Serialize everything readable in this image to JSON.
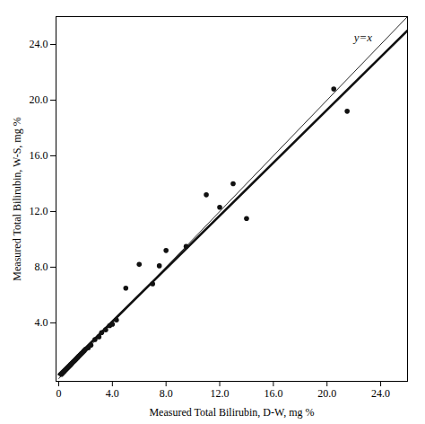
{
  "chart_data": {
    "type": "scatter",
    "xlabel": "Measured Total Bilirubin, D-W, mg %",
    "ylabel": "Measured Total Bilirubin, W-S, mg %",
    "series": [
      {
        "type": "line",
        "line_style": "solid",
        "color": "#111111",
        "x": [
          0,
          26
        ],
        "values": [
          0,
          26
        ]
      },
      {
        "type": "line",
        "line_style": "solid",
        "color": "#111111",
        "x": [
          0,
          26
        ],
        "values": [
          0.3,
          25.0
        ]
      },
      {
        "type": "scatter",
        "marker": "circle",
        "color": "#111111",
        "x": [
          0.2,
          0.3,
          0.4,
          0.5,
          0.6,
          0.7,
          0.8,
          0.9,
          1.0,
          1.1,
          1.2,
          1.3,
          1.4,
          1.5,
          1.6,
          1.7,
          1.8,
          1.9,
          2.0,
          2.2,
          2.4,
          2.7,
          3.0,
          3.2,
          3.5,
          3.8,
          4.0,
          4.3,
          5.0,
          6.0,
          7.0,
          7.5,
          8.0,
          9.5,
          11.0,
          12.0,
          13.0,
          14.0,
          20.5,
          21.5
        ],
        "values": [
          0.3,
          0.4,
          0.5,
          0.6,
          0.7,
          0.8,
          0.9,
          1.0,
          1.1,
          1.2,
          1.3,
          1.4,
          1.5,
          1.6,
          1.7,
          1.8,
          1.9,
          2.0,
          2.1,
          2.2,
          2.4,
          2.8,
          3.0,
          3.3,
          3.5,
          3.8,
          3.9,
          4.2,
          6.5,
          8.2,
          6.8,
          8.1,
          9.2,
          9.5,
          13.2,
          12.3,
          14.0,
          11.5,
          20.8,
          19.2
        ]
      }
    ],
    "annotations": [
      {
        "text": "y=x",
        "x": 22.0,
        "y": 24.5
      }
    ],
    "xlim": [
      -0.2,
      26
    ],
    "ylim": [
      -0.2,
      26
    ],
    "xticks": [
      0,
      {
        "value": 4.0,
        "label": "4.0"
      },
      {
        "value": 8.0,
        "label": "8.0"
      },
      {
        "value": 12.0,
        "label": "12.0"
      },
      {
        "value": 16.0,
        "label": "16.0"
      },
      {
        "value": 20.0,
        "label": "20.0"
      },
      {
        "value": 24.0,
        "label": "24.0"
      }
    ],
    "yticks": [
      {
        "value": 4.0,
        "label": "4.0"
      },
      {
        "value": 8.0,
        "label": "8.0"
      },
      {
        "value": 12.0,
        "label": "12.0"
      },
      {
        "value": 16.0,
        "label": "16.0"
      },
      {
        "value": 20.0,
        "label": "20.0"
      },
      {
        "value": 24.0,
        "label": "24.0"
      }
    ],
    "grid": false
  }
}
